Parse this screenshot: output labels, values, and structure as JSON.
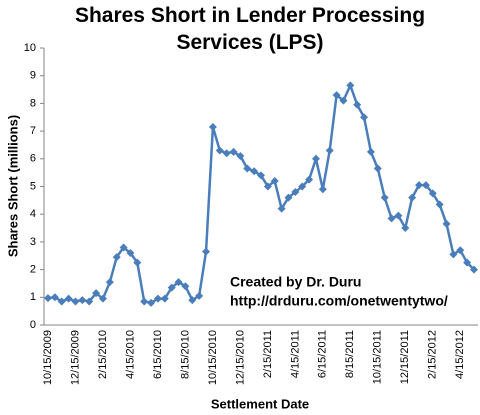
{
  "chart_data": {
    "type": "line",
    "title": "Shares Short in Lender Processing Services (LPS)",
    "x_label": "Settlement Date",
    "y_label": "Shares Short (millions)",
    "annotations": [
      "Created by Dr. Duru",
      "http://drduru.com/onetwentytwo/"
    ],
    "categories": [
      "10/15/2009",
      null,
      null,
      null,
      "12/15/2009",
      null,
      null,
      null,
      "2/15/2010",
      null,
      null,
      null,
      "4/15/2010",
      null,
      null,
      null,
      "6/15/2010",
      null,
      null,
      null,
      "8/15/2010",
      null,
      null,
      null,
      "10/15/2010",
      null,
      null,
      null,
      "12/15/2010",
      null,
      null,
      null,
      "2/15/2011",
      null,
      null,
      null,
      "4/15/2011",
      null,
      null,
      null,
      "6/15/2011",
      null,
      null,
      null,
      "8/15/2011",
      null,
      null,
      null,
      "10/15/2011",
      null,
      null,
      null,
      "12/15/2011",
      null,
      null,
      null,
      "2/15/2012",
      null,
      null,
      null,
      "4/15/2012",
      null,
      null
    ],
    "series": [
      {
        "name": "Shares Short",
        "color": "#4a7ebb",
        "values": [
          0.97,
          1.0,
          0.85,
          0.95,
          0.85,
          0.9,
          0.85,
          1.15,
          0.95,
          1.55,
          2.45,
          2.8,
          2.6,
          2.25,
          0.85,
          0.8,
          0.95,
          0.95,
          1.35,
          1.55,
          1.4,
          0.9,
          1.05,
          2.65,
          7.15,
          6.3,
          6.2,
          6.25,
          6.1,
          5.65,
          5.55,
          5.4,
          5.0,
          5.2,
          4.2,
          4.6,
          4.8,
          5.0,
          5.25,
          6.0,
          4.9,
          6.3,
          8.3,
          8.1,
          8.65,
          7.95,
          7.5,
          6.25,
          5.65,
          4.6,
          3.85,
          3.95,
          3.5,
          4.6,
          5.05,
          5.05,
          4.75,
          4.35,
          3.65,
          2.55,
          2.7,
          2.25,
          2.0
        ]
      }
    ],
    "ylim": [
      0,
      10
    ],
    "yticks": [
      0,
      1,
      2,
      3,
      4,
      5,
      6,
      7,
      8,
      9,
      10
    ],
    "grid": false,
    "legend": false
  }
}
